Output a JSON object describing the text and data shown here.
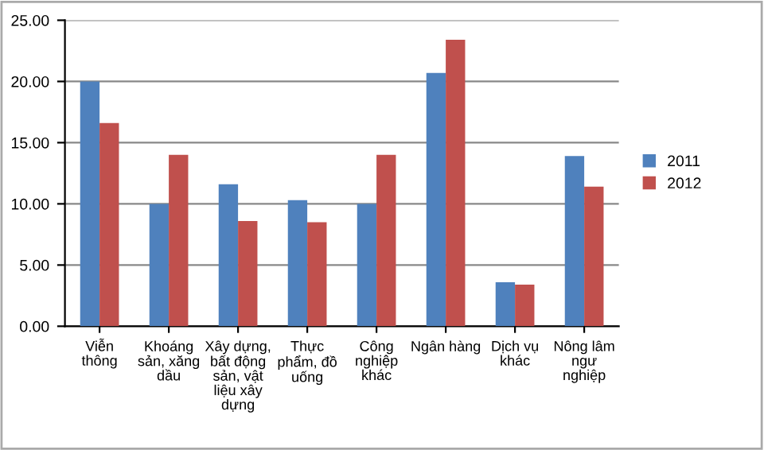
{
  "chart_data": {
    "type": "bar",
    "categories": [
      "Viễn thông",
      "Khoáng sản, xăng dầu",
      "Xây dựng, bất động sản, vật liệu xây dựng",
      "Thực phẩm, đồ uống",
      "Công nghiệp khác",
      "Ngân hàng",
      "Dịch vụ khác",
      "Nông lâm ngư nghiệp"
    ],
    "series": [
      {
        "name": "2011",
        "color": "#4f81bd",
        "values": [
          20.0,
          10.0,
          11.6,
          10.3,
          10.0,
          20.7,
          3.6,
          13.9
        ]
      },
      {
        "name": "2012",
        "color": "#c0504d",
        "values": [
          16.6,
          14.0,
          8.6,
          8.5,
          14.0,
          23.4,
          3.4,
          11.4
        ]
      }
    ],
    "ylim": [
      0,
      25
    ],
    "yticks": [
      {
        "value": 0,
        "label": "0.00"
      },
      {
        "value": 5,
        "label": "5.00"
      },
      {
        "value": 10,
        "label": "10.00"
      },
      {
        "value": 15,
        "label": "15.00"
      },
      {
        "value": 20,
        "label": "20.00"
      },
      {
        "value": 25,
        "label": "25.00"
      }
    ],
    "grid": "y",
    "legend": "right"
  }
}
